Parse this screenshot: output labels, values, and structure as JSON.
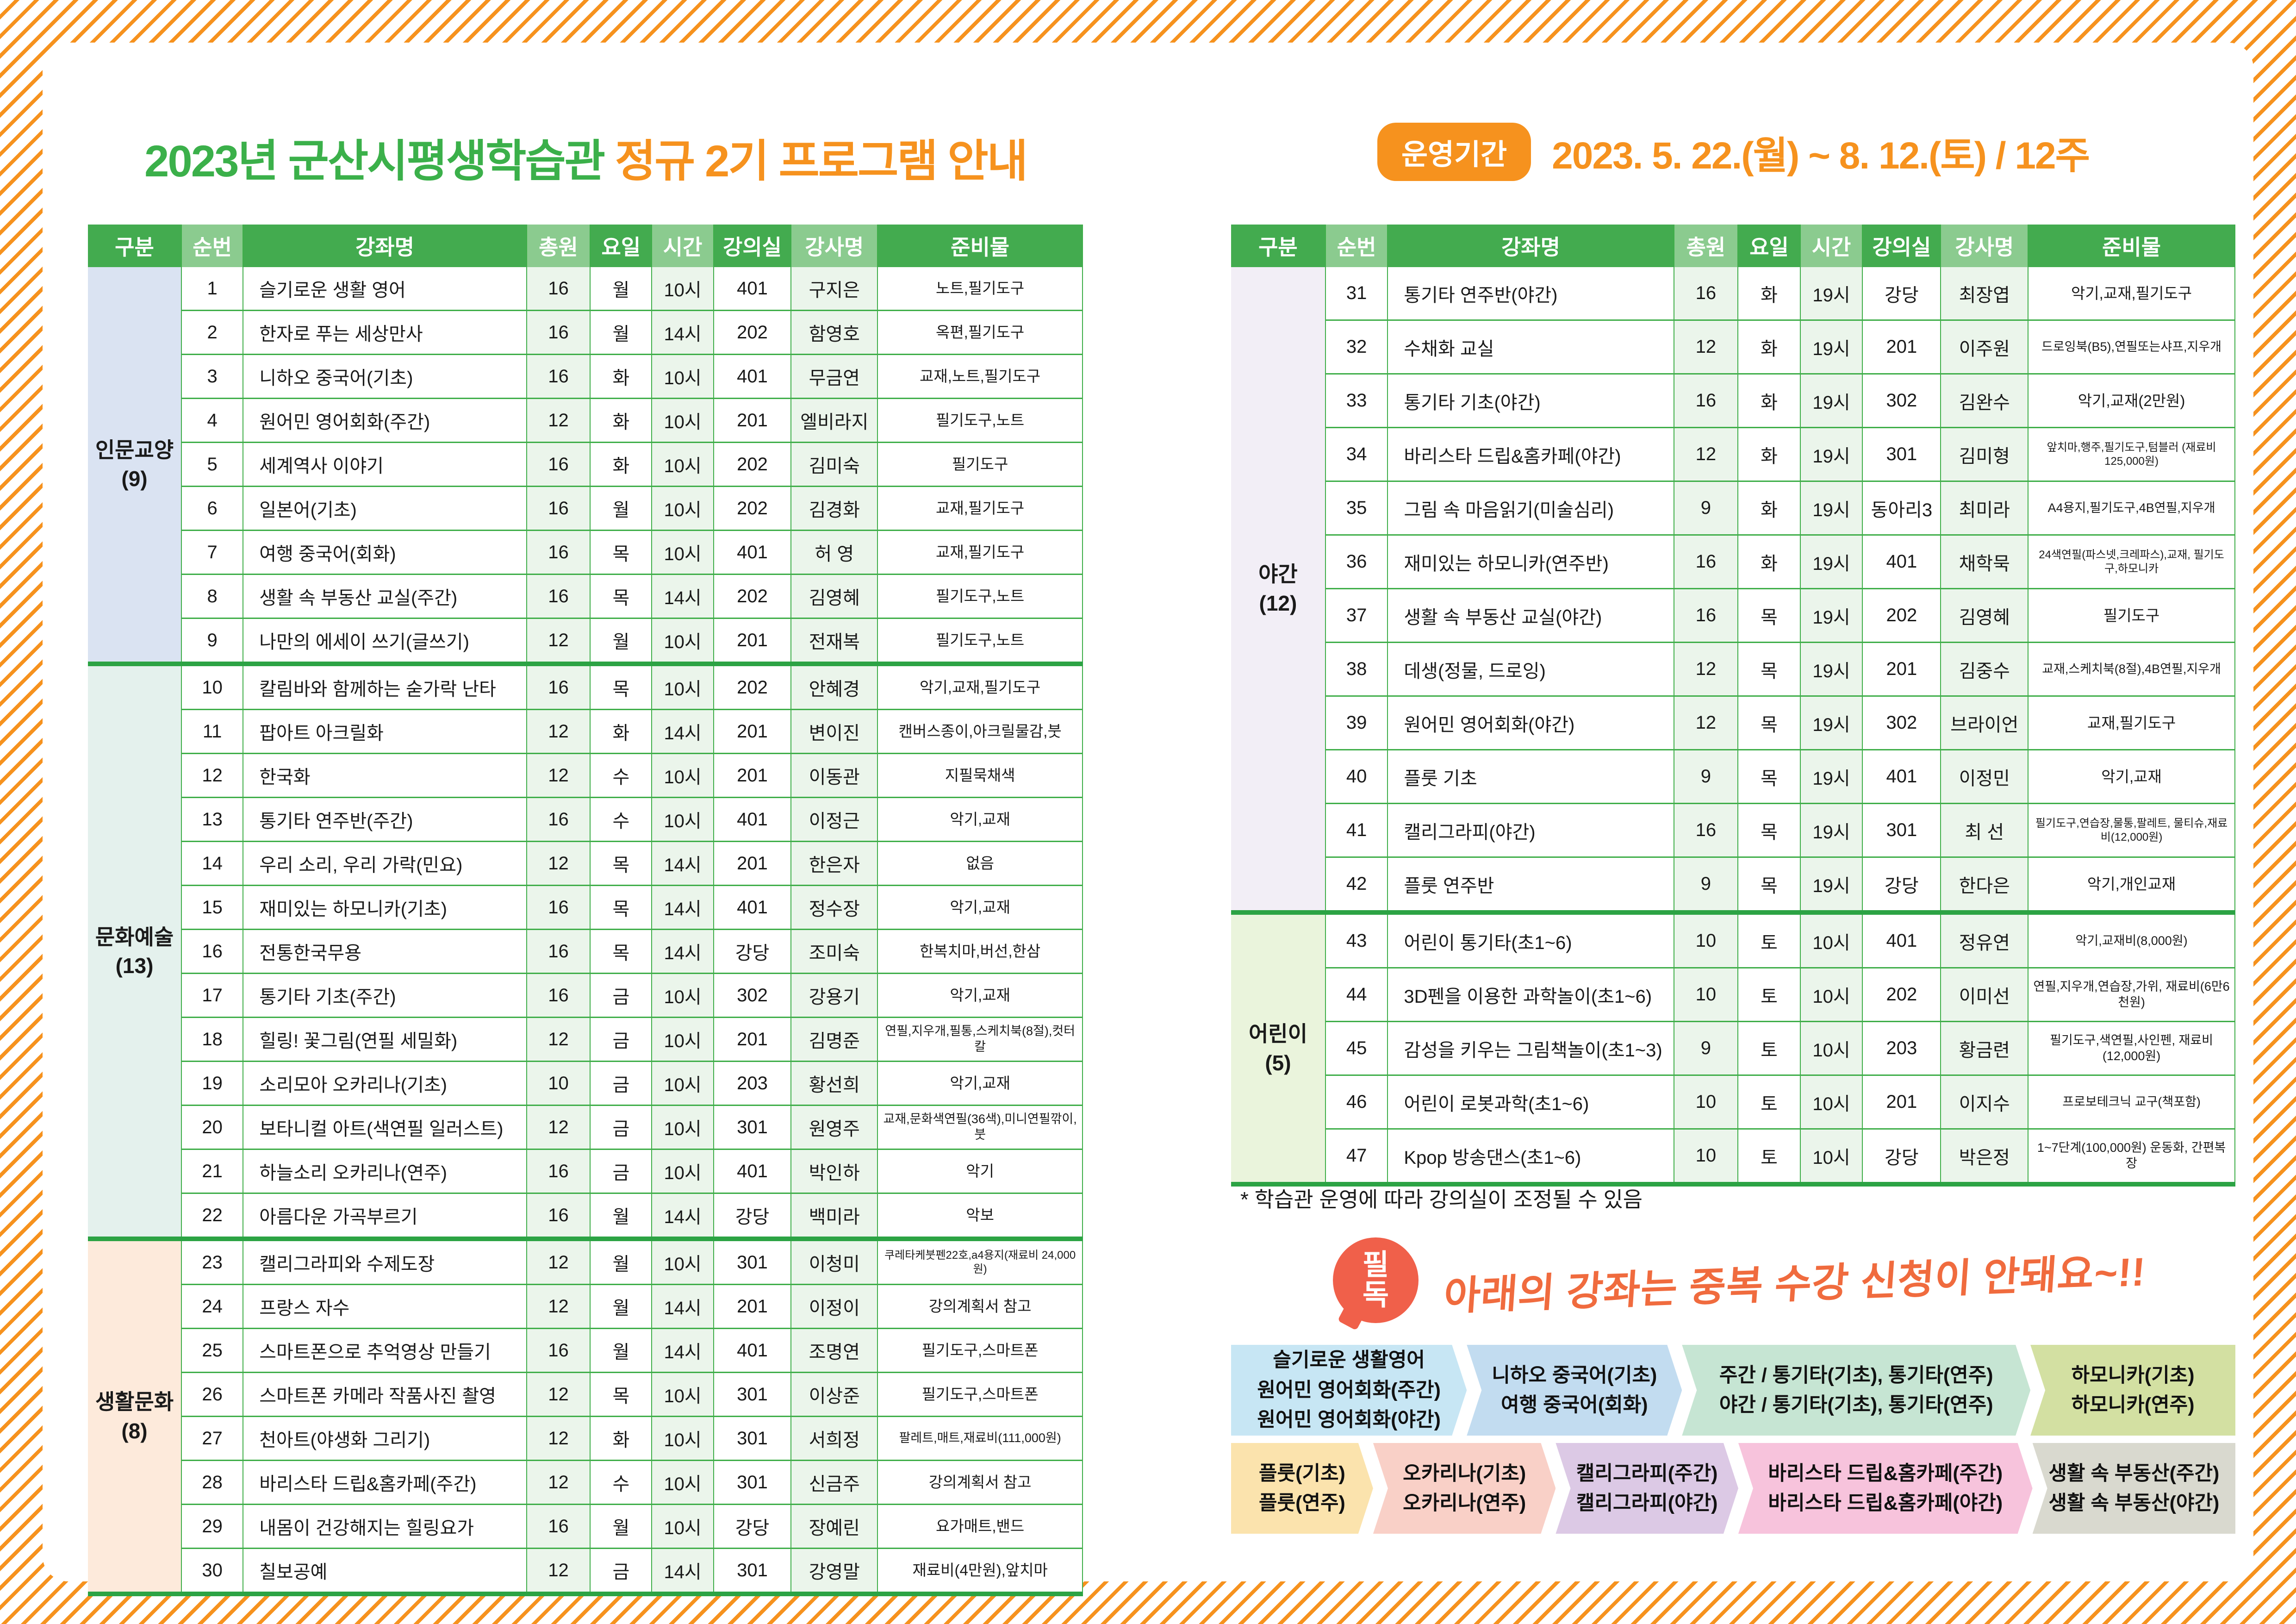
{
  "page": {
    "title_green": "2023년 군산시평생학습관",
    "title_orange": "정규 2기 프로그램 안내",
    "period_badge": "운영기간",
    "period_text": "2023. 5. 22.(월) ~ 8. 12.(토) / 12주",
    "note": "* 학습관 운영에 따라 강의실이 조정될 수 있음",
    "pildok_badge_line1": "필",
    "pildok_badge_line2": "독",
    "pildok_text": "아래의 강좌는 중복 수강 신청이 안돼요~!!"
  },
  "colors": {
    "accent_green": "#3bb04a",
    "accent_orange": "#f6921e",
    "header_green": "#43ab4f",
    "header_green_light": "#8bcb8f",
    "grid_green": "#3fae49",
    "pildok_red": "#f0604a"
  },
  "table": {
    "headers": [
      "구분",
      "순번",
      "강좌명",
      "총원",
      "요일",
      "시간",
      "강의실",
      "강사명",
      "준비물"
    ]
  },
  "left_groups": [
    {
      "name": "인문교양",
      "count": "(9)",
      "color": "#dae3f2",
      "rows": [
        [
          "1",
          "슬기로운 생활 영어",
          "16",
          "월",
          "10시",
          "401",
          "구지은",
          "노트,필기도구"
        ],
        [
          "2",
          "한자로 푸는 세상만사",
          "16",
          "월",
          "14시",
          "202",
          "함영호",
          "옥편,필기도구"
        ],
        [
          "3",
          "니하오 중국어(기초)",
          "16",
          "화",
          "10시",
          "401",
          "무금연",
          "교재,노트,필기도구"
        ],
        [
          "4",
          "원어민 영어회화(주간)",
          "12",
          "화",
          "10시",
          "201",
          "엘비라지",
          "필기도구,노트"
        ],
        [
          "5",
          "세계역사 이야기",
          "16",
          "화",
          "10시",
          "202",
          "김미숙",
          "필기도구"
        ],
        [
          "6",
          "일본어(기초)",
          "16",
          "월",
          "10시",
          "202",
          "김경화",
          "교재,필기도구"
        ],
        [
          "7",
          "여행 중국어(회화)",
          "16",
          "목",
          "10시",
          "401",
          "허 영",
          "교재,필기도구"
        ],
        [
          "8",
          "생활 속 부동산 교실(주간)",
          "16",
          "목",
          "14시",
          "202",
          "김영혜",
          "필기도구,노트"
        ],
        [
          "9",
          "나만의 에세이 쓰기(글쓰기)",
          "12",
          "월",
          "10시",
          "201",
          "전재복",
          "필기도구,노트"
        ]
      ]
    },
    {
      "name": "문화예술",
      "count": "(13)",
      "color": "#e4f1ed",
      "rows": [
        [
          "10",
          "칼림바와 함께하는 숟가락 난타",
          "16",
          "목",
          "10시",
          "202",
          "안혜경",
          "악기,교재,필기도구"
        ],
        [
          "11",
          "팝아트 아크릴화",
          "12",
          "화",
          "14시",
          "201",
          "변이진",
          "캔버스종이,아크릴물감,붓"
        ],
        [
          "12",
          "한국화",
          "12",
          "수",
          "10시",
          "201",
          "이동관",
          "지필묵채색"
        ],
        [
          "13",
          "통기타 연주반(주간)",
          "16",
          "수",
          "10시",
          "401",
          "이정근",
          "악기,교재"
        ],
        [
          "14",
          "우리 소리, 우리 가락(민요)",
          "12",
          "목",
          "14시",
          "201",
          "한은자",
          "없음"
        ],
        [
          "15",
          "재미있는 하모니카(기초)",
          "16",
          "목",
          "14시",
          "401",
          "정수장",
          "악기,교재"
        ],
        [
          "16",
          "전통한국무용",
          "16",
          "목",
          "14시",
          "강당",
          "조미숙",
          "한복치마,버선,한삼"
        ],
        [
          "17",
          "통기타 기초(주간)",
          "16",
          "금",
          "10시",
          "302",
          "강용기",
          "악기,교재"
        ],
        [
          "18",
          "힐링! 꽃그림(연필 세밀화)",
          "12",
          "금",
          "10시",
          "201",
          "김명준",
          "연필,지우개,필통,스케치북(8절),컷터칼"
        ],
        [
          "19",
          "소리모아 오카리나(기초)",
          "10",
          "금",
          "10시",
          "203",
          "황선희",
          "악기,교재"
        ],
        [
          "20",
          "보타니컬 아트(색연필 일러스트)",
          "12",
          "금",
          "10시",
          "301",
          "원영주",
          "교재,문화색연필(36색),미니연필깎이,붓"
        ],
        [
          "21",
          "하늘소리 오카리나(연주)",
          "16",
          "금",
          "10시",
          "401",
          "박인하",
          "악기"
        ],
        [
          "22",
          "아름다운 가곡부르기",
          "16",
          "월",
          "14시",
          "강당",
          "백미라",
          "악보"
        ]
      ]
    },
    {
      "name": "생활문화",
      "count": "(8)",
      "color": "#fdeadb",
      "rows": [
        [
          "23",
          "캘리그라피와 수제도장",
          "12",
          "월",
          "10시",
          "301",
          "이청미",
          "쿠레타케붓펜22호,a4용지(재료비 24,000원)"
        ],
        [
          "24",
          "프랑스 자수",
          "12",
          "월",
          "14시",
          "201",
          "이정이",
          "강의계획서 참고"
        ],
        [
          "25",
          "스마트폰으로 추억영상 만들기",
          "16",
          "월",
          "14시",
          "401",
          "조명연",
          "필기도구,스마트폰"
        ],
        [
          "26",
          "스마트폰 카메라 작품사진 촬영",
          "12",
          "목",
          "10시",
          "301",
          "이상준",
          "필기도구,스마트폰"
        ],
        [
          "27",
          "천아트(야생화 그리기)",
          "12",
          "화",
          "10시",
          "301",
          "서희정",
          "팔레트,매트,재료비(111,000원)"
        ],
        [
          "28",
          "바리스타 드립&홈카페(주간)",
          "12",
          "수",
          "10시",
          "301",
          "신금주",
          "강의계획서 참고"
        ],
        [
          "29",
          "내몸이 건강해지는 힐링요가",
          "16",
          "월",
          "10시",
          "강당",
          "장예린",
          "요가매트,밴드"
        ],
        [
          "30",
          "칠보공예",
          "12",
          "금",
          "14시",
          "301",
          "강영말",
          "재료비(4만원),앞치마"
        ]
      ]
    }
  ],
  "right_groups": [
    {
      "name": "야간",
      "count": "(12)",
      "color": "#f2eef6",
      "rows": [
        [
          "31",
          "통기타 연주반(야간)",
          "16",
          "화",
          "19시",
          "강당",
          "최장엽",
          "악기,교재,필기도구"
        ],
        [
          "32",
          "수채화 교실",
          "12",
          "화",
          "19시",
          "201",
          "이주원",
          "드로잉북(B5),연필또는샤프,지우개"
        ],
        [
          "33",
          "통기타 기초(야간)",
          "16",
          "화",
          "19시",
          "302",
          "김완수",
          "악기,교재(2만원)"
        ],
        [
          "34",
          "바리스타 드립&홈카페(야간)",
          "12",
          "화",
          "19시",
          "301",
          "김미형",
          "앞치마,행주,필기도구,텀블러 (재료비125,000원)"
        ],
        [
          "35",
          "그림 속 마음읽기(미술심리)",
          "9",
          "화",
          "19시",
          "동아리3",
          "최미라",
          "A4용지,필기도구,4B연필,지우개"
        ],
        [
          "36",
          "재미있는 하모니카(연주반)",
          "16",
          "화",
          "19시",
          "401",
          "채학묵",
          "24색연필(파스넷,크레파스),교재, 필기도구,하모니카"
        ],
        [
          "37",
          "생활 속 부동산 교실(야간)",
          "16",
          "목",
          "19시",
          "202",
          "김영혜",
          "필기도구"
        ],
        [
          "38",
          "데생(정물, 드로잉)",
          "12",
          "목",
          "19시",
          "201",
          "김중수",
          "교재,스케치북(8절),4B연필,지우개"
        ],
        [
          "39",
          "원어민 영어회화(야간)",
          "12",
          "목",
          "19시",
          "302",
          "브라이언",
          "교재,필기도구"
        ],
        [
          "40",
          "플룻 기초",
          "9",
          "목",
          "19시",
          "401",
          "이정민",
          "악기,교재"
        ],
        [
          "41",
          "캘리그라피(야간)",
          "16",
          "목",
          "19시",
          "301",
          "최 선",
          "필기도구,연습장,물통,팔레트, 물티슈,재료비(12,000원)"
        ],
        [
          "42",
          "플룻 연주반",
          "9",
          "목",
          "19시",
          "강당",
          "한다은",
          "악기,개인교재"
        ]
      ]
    },
    {
      "name": "어린이",
      "count": "(5)",
      "color": "#eaf4dc",
      "rows": [
        [
          "43",
          "어린이 통기타(초1~6)",
          "10",
          "토",
          "10시",
          "401",
          "정유연",
          "악기,교재비(8,000원)"
        ],
        [
          "44",
          "3D펜을 이용한 과학놀이(초1~6)",
          "10",
          "토",
          "10시",
          "202",
          "이미선",
          "연필,지우개,연습장,가위, 재료비(6만6천원)"
        ],
        [
          "45",
          "감성을 키우는 그림책놀이(초1~3)",
          "9",
          "토",
          "10시",
          "203",
          "황금련",
          "필기도구,색연필,사인펜, 재료비(12,000원)"
        ],
        [
          "46",
          "어린이 로봇과학(초1~6)",
          "10",
          "토",
          "10시",
          "201",
          "이지수",
          "프로보테크닉 교구(책포함)"
        ],
        [
          "47",
          "Kpop 방송댄스(초1~6)",
          "10",
          "토",
          "10시",
          "강당",
          "박은정",
          "1~7단계(100,000원) 운동화, 간편복장"
        ]
      ]
    }
  ],
  "restrict_rows": [
    [
      {
        "lines": [
          "슬기로운 생활영어",
          "원어민 영어회화(주간)",
          "원어민 영어회화(야간)"
        ],
        "color": "#c7e6f4",
        "flex": 23
      },
      {
        "lines": [
          "니하오 중국어(기초)",
          "여행 중국어(회화)"
        ],
        "color": "#c2dcf0",
        "flex": 21
      },
      {
        "lines": [
          "주간 / 통기타(기초), 통기타(연주)",
          "야간 / 통기타(기초), 통기타(연주)"
        ],
        "color": "#c6e5d3",
        "flex": 34
      },
      {
        "lines": [
          "하모니카(기초)",
          "하모니카(연주)"
        ],
        "color": "#d3e0a2",
        "flex": 20
      }
    ],
    [
      {
        "lines": [
          "플룻(기초)",
          "플룻(연주)"
        ],
        "color": "#fbe3ad",
        "flex": 14
      },
      {
        "lines": [
          "오카리나(기초)",
          "오카리나(연주)"
        ],
        "color": "#f9d0c7",
        "flex": 18
      },
      {
        "lines": [
          "캘리그라피(주간)",
          "캘리그라피(야간)"
        ],
        "color": "#dcc9e5",
        "flex": 18
      },
      {
        "lines": [
          "바리스타 드립&홈카페(주간)",
          "바리스타 드립&홈카페(야간)"
        ],
        "color": "#f7c3dc",
        "flex": 29
      },
      {
        "lines": [
          "생활 속 부동산(주간)",
          "생활 속 부동산(야간)"
        ],
        "color": "#d9d9cf",
        "flex": 20
      }
    ]
  ]
}
